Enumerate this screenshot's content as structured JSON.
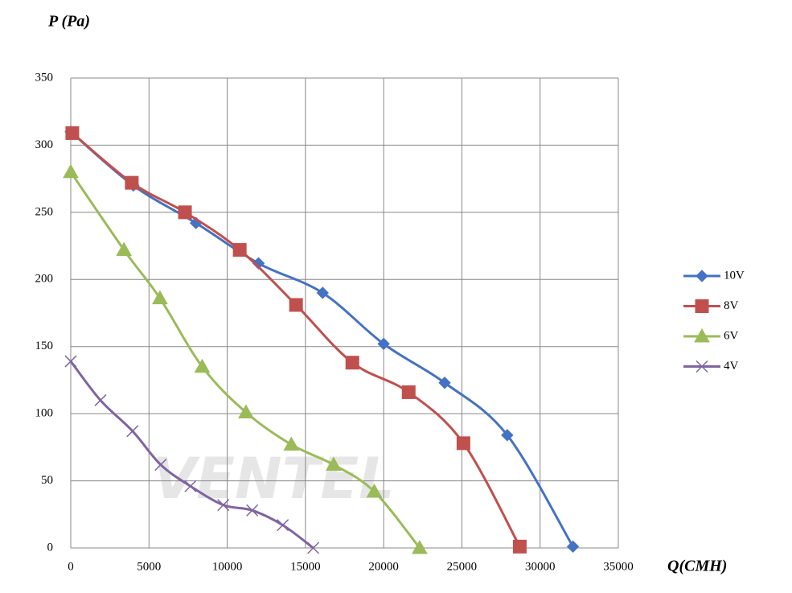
{
  "chart_data": {
    "type": "line",
    "title": "P (Pa)",
    "x_label": "Q(CMH)",
    "watermark": "VENTEL",
    "xlim": [
      0,
      35000
    ],
    "xticks": [
      0,
      5000,
      10000,
      15000,
      20000,
      25000,
      30000,
      35000
    ],
    "ylim": [
      0,
      350
    ],
    "yticks": [
      0,
      50,
      100,
      150,
      200,
      250,
      300,
      350
    ],
    "grid": true,
    "legend": "right",
    "series": [
      {
        "name": "10V",
        "color": "#4472c4",
        "marker": "diamond",
        "x": [
          0,
          4000,
          8000,
          12000,
          16100,
          20000,
          23900,
          27900,
          32100
        ],
        "values": [
          310,
          270,
          242,
          212,
          190,
          152,
          123,
          84,
          1
        ]
      },
      {
        "name": "8V",
        "color": "#c0504d",
        "marker": "square",
        "x": [
          100,
          3900,
          7300,
          10800,
          14400,
          18000,
          21600,
          25100,
          28700
        ],
        "values": [
          309,
          272,
          250,
          222,
          181,
          138,
          116,
          78,
          1
        ]
      },
      {
        "name": "6V",
        "color": "#9bbb59",
        "marker": "triangle",
        "x": [
          0,
          3400,
          5700,
          8400,
          11200,
          14100,
          16800,
          19400,
          22300
        ],
        "values": [
          280,
          222,
          186,
          135,
          101,
          77,
          62,
          42,
          0
        ]
      },
      {
        "name": "4V",
        "color": "#8064a2",
        "marker": "x",
        "x": [
          0,
          1900,
          3950,
          5750,
          7650,
          9750,
          11600,
          13550,
          15500
        ],
        "values": [
          139,
          110,
          87,
          62,
          46,
          32,
          28,
          17,
          0
        ]
      }
    ]
  }
}
